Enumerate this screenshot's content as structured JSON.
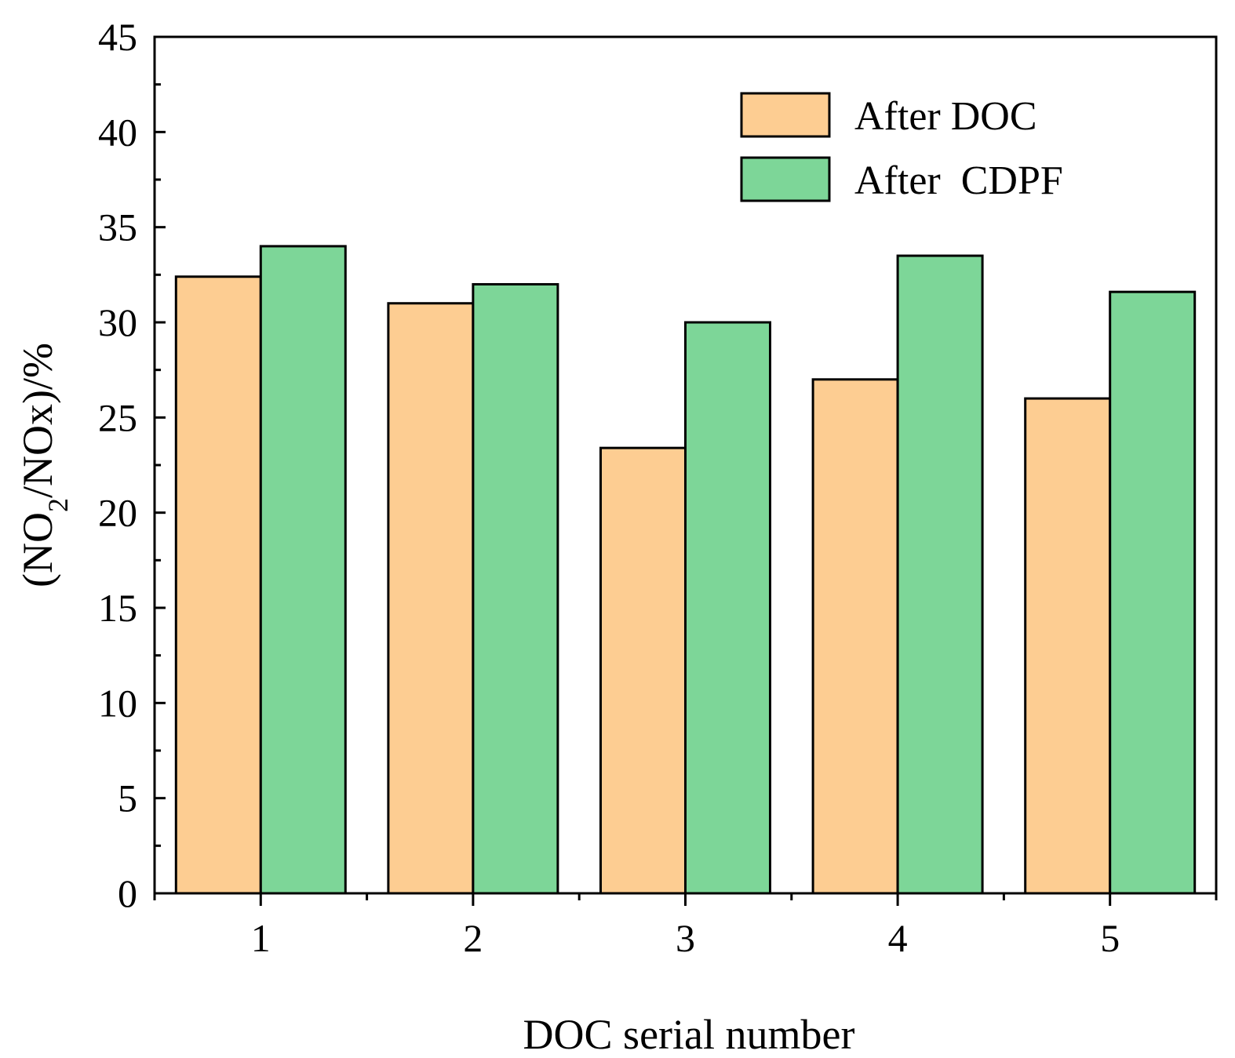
{
  "chart_data": {
    "type": "bar",
    "title": "",
    "xlabel": "DOC serial number",
    "ylabel": {
      "open": "(NO",
      "sub": "2",
      "close": "/NOx)/%"
    },
    "categories": [
      "1",
      "2",
      "3",
      "4",
      "5"
    ],
    "ylim": [
      0,
      45
    ],
    "yticks": [
      "0",
      "5",
      "10",
      "15",
      "20",
      "25",
      "30",
      "35",
      "40",
      "45"
    ],
    "ytick_values": [
      0,
      5,
      10,
      15,
      20,
      25,
      30,
      35,
      40,
      45
    ],
    "grid": false,
    "legend_position": "top-right",
    "series": [
      {
        "name": "After DOC",
        "color": "#fdcd92",
        "values": [
          32.4,
          31.0,
          23.4,
          27.0,
          26.0
        ]
      },
      {
        "name": "After  CDPF",
        "color": "#7dd698",
        "values": [
          34.0,
          32.0,
          30.0,
          33.5,
          31.6
        ]
      }
    ]
  }
}
